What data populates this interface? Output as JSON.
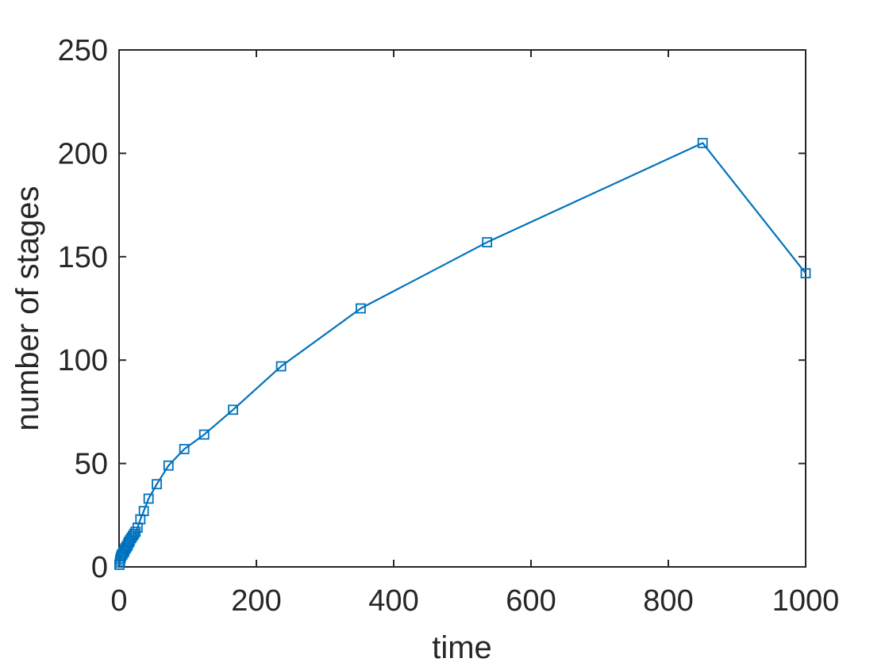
{
  "chart_data": {
    "type": "line",
    "xlabel": "time",
    "ylabel": "number of stages",
    "xlim": [
      0,
      1000
    ],
    "ylim": [
      0,
      250
    ],
    "x_ticks": [
      0,
      200,
      400,
      600,
      800,
      1000
    ],
    "y_ticks": [
      0,
      50,
      100,
      150,
      200,
      250
    ],
    "x_tick_labels": [
      "0",
      "200",
      "400",
      "600",
      "800",
      "1000"
    ],
    "y_tick_labels": [
      "0",
      "50",
      "100",
      "150",
      "200",
      "250"
    ],
    "grid": false,
    "marker": "square",
    "series": [
      {
        "color": "#0072BD",
        "x": [
          0.5,
          1,
          1.5,
          2,
          3,
          4,
          5,
          6,
          7,
          8,
          9,
          10,
          11,
          12,
          13,
          14,
          15,
          16,
          18,
          20,
          22,
          24,
          27,
          31,
          36,
          43,
          55,
          72,
          95,
          124,
          166,
          236,
          352,
          536,
          850,
          1000
        ],
        "y": [
          1,
          2,
          3,
          4,
          5,
          6,
          6,
          7,
          7,
          8,
          9,
          9,
          10,
          10,
          11,
          12,
          12,
          13,
          14,
          15,
          16,
          17,
          19,
          23,
          27,
          33,
          40,
          49,
          57,
          64,
          76,
          97,
          125,
          157,
          205,
          142
        ]
      }
    ]
  }
}
